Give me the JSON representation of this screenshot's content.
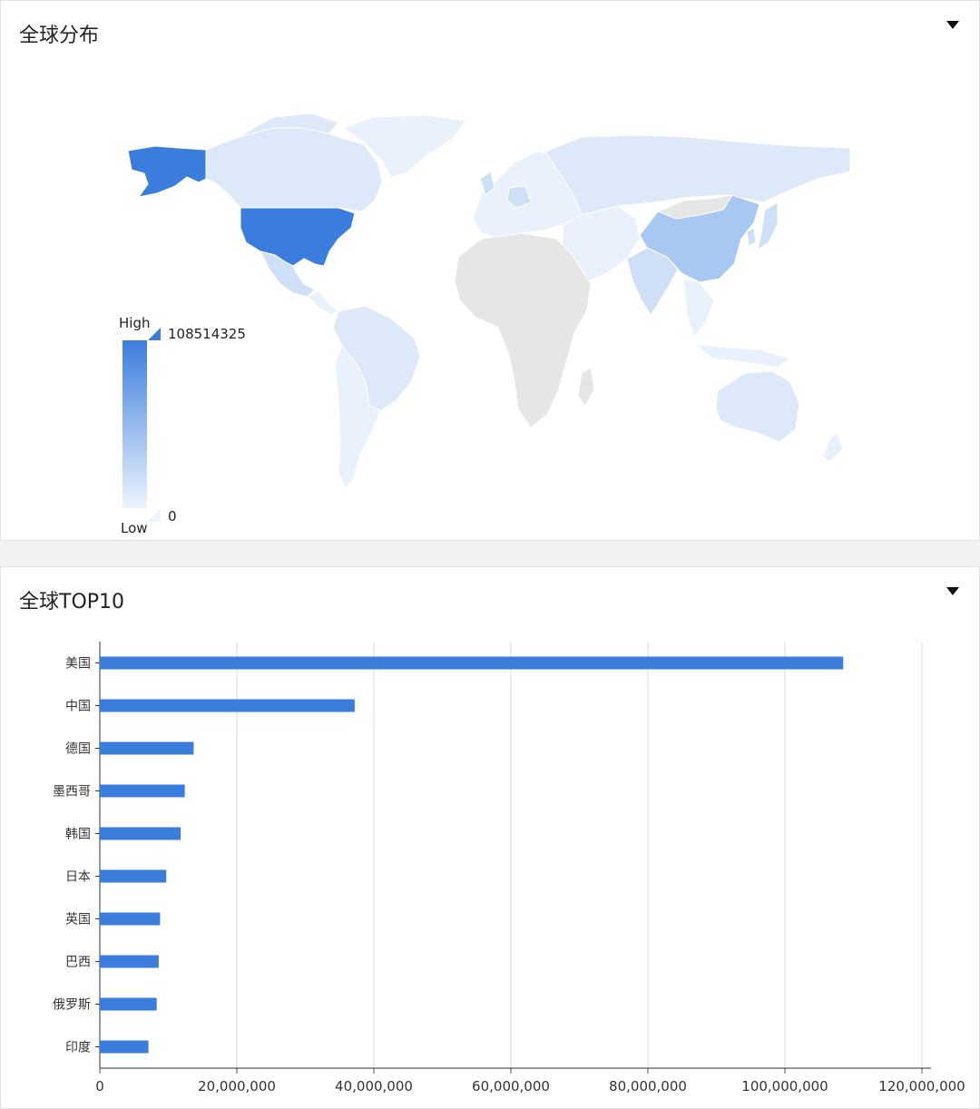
{
  "map_panel": {
    "title": "全球分布",
    "legend": {
      "high_label": "High",
      "low_label": "Low",
      "max_value": "108514325",
      "min_value": "0",
      "color_high": "#3b7ddd",
      "color_low": "#eef4fd"
    },
    "colors": {
      "no_data": "#e6e6e6",
      "usa": "#3b7ddd",
      "china": "#a9c8f1",
      "light": "#dde9f9",
      "lighter": "#e9f1fc",
      "mid": "#cfe0f6"
    },
    "toggle_icon": "caret-down-icon"
  },
  "bar_panel": {
    "title": "全球TOP10",
    "toggle_icon": "caret-down-icon",
    "bar_color": "#3b7ddd"
  },
  "chart_data": {
    "type": "bar",
    "orientation": "horizontal",
    "categories": [
      "美国",
      "中国",
      "德国",
      "墨西哥",
      "韩国",
      "日本",
      "英国",
      "巴西",
      "俄罗斯",
      "印度"
    ],
    "values": [
      108514325,
      37200000,
      13700000,
      12400000,
      11800000,
      9700000,
      8800000,
      8600000,
      8300000,
      7100000
    ],
    "xlim": [
      0,
      120000000
    ],
    "xticks": [
      "0",
      "20,000,000",
      "40,000,000",
      "60,000,000",
      "80,000,000",
      "100,000,000",
      "120,000,000"
    ],
    "grid": true
  }
}
